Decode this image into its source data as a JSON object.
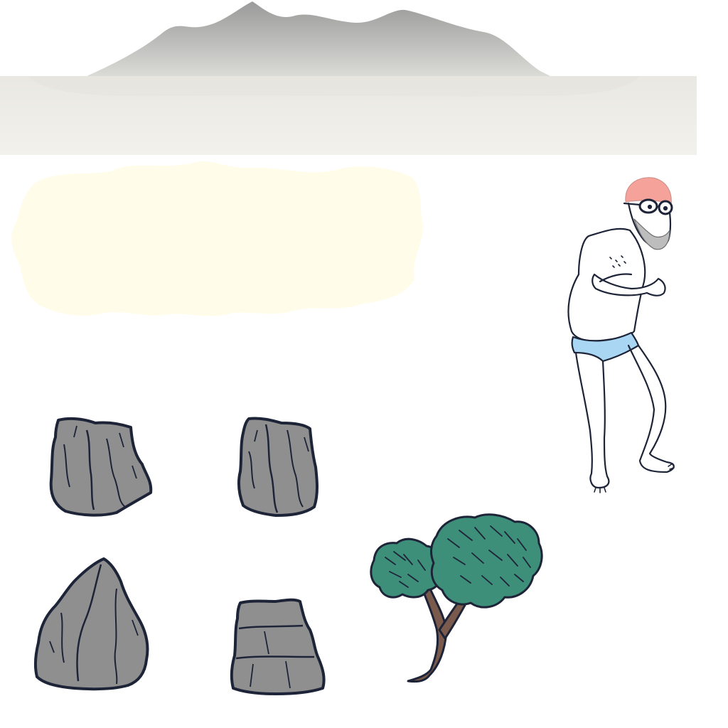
{
  "scene": {
    "background_color": "#ffffff"
  },
  "assets": {
    "mountain": {
      "icon": "mountain-range-icon",
      "color": "#9c9c9c"
    },
    "mist_band": {
      "icon": "mist-band-icon",
      "color": "#efeee9"
    },
    "fog_cloud": {
      "icon": "fog-cloud-icon",
      "color": "#fffde9"
    },
    "swimmer": {
      "icon": "elderly-swimmer-icon",
      "cap_color": "#f5a29a",
      "trunks_color": "#a9d6f2",
      "skin_color": "#ffffff"
    },
    "rocks": [
      {
        "icon": "rock-icon",
        "color": "#8f8f8f"
      },
      {
        "icon": "rock-icon",
        "color": "#8f8f8f"
      },
      {
        "icon": "rock-icon",
        "color": "#8f8f8f"
      },
      {
        "icon": "rock-icon",
        "color": "#8f8f8f"
      }
    ],
    "tree": {
      "icon": "pine-tree-icon",
      "foliage_color": "#3e8f7a",
      "trunk_color": "#7a5a4c"
    },
    "outline_color": "#1e2438"
  }
}
